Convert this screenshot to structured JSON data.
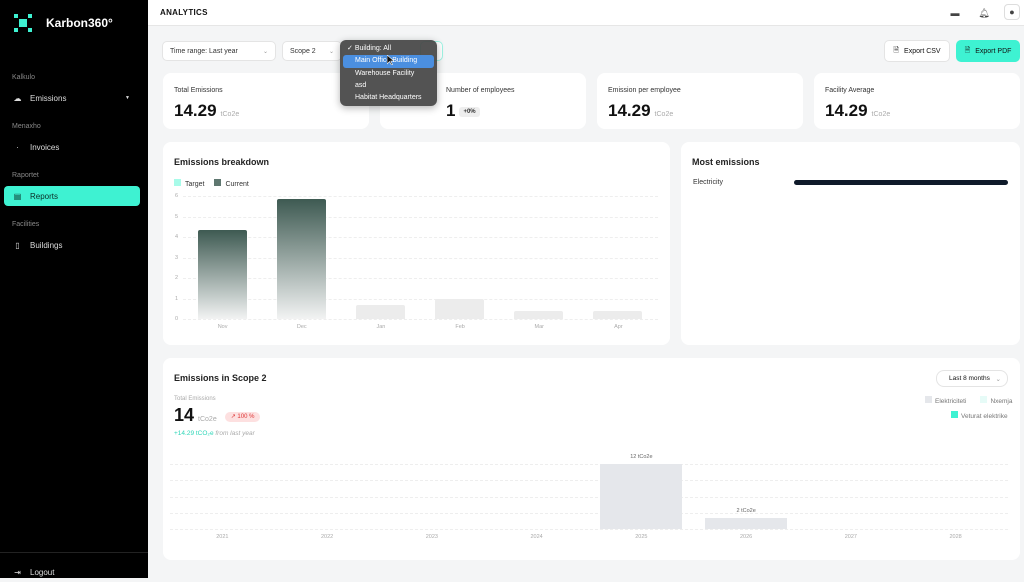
{
  "app": {
    "name": "Karbon360°"
  },
  "sidebar": {
    "sections": [
      {
        "label": "Kalkulo",
        "items": [
          {
            "label": "Emissions",
            "icon": "cloud-icon"
          }
        ]
      },
      {
        "label": "Menaxho",
        "items": [
          {
            "label": "Invoices",
            "icon": "dot-icon"
          }
        ]
      },
      {
        "label": "Raportet",
        "items": [
          {
            "label": "Reports",
            "icon": "report-icon",
            "active": true
          }
        ]
      },
      {
        "label": "Facilities",
        "items": [
          {
            "label": "Buildings",
            "icon": "building-icon"
          }
        ]
      }
    ],
    "logout": "Logout"
  },
  "header": {
    "title": "ANALYTICS"
  },
  "filters": {
    "time_range": "Time range: Last year",
    "scope": "Scope 2",
    "building_options": [
      "Building: All",
      "Main Office Building",
      "Warehouse Facility",
      "asd",
      "Habitat Headquarters"
    ],
    "check": "✓"
  },
  "actions": {
    "export_csv": "Export CSV",
    "export_pdf": "Export PDF"
  },
  "kpis": [
    {
      "label": "Total Emissions",
      "value": "14.29",
      "unit": "tCo2e"
    },
    {
      "label": "Number of employees",
      "value": "1",
      "badge": "+0%"
    },
    {
      "label": "Emission per employee",
      "value": "14.29",
      "unit": "tCo2e"
    },
    {
      "label": "Facility Average",
      "value": "14.29",
      "unit": "tCo2e"
    }
  ],
  "most_emissions": {
    "title": "Most emissions",
    "items": [
      {
        "label": "Electricity",
        "share": 1.0
      }
    ]
  },
  "scope2": {
    "title": "Emissions in Scope 2",
    "range": "Last 8 months",
    "total_label": "Total Emissions",
    "total": "14",
    "unit": "tCo2e",
    "change": "↗ 100 %",
    "delta": "+14.29 tCO₂e",
    "delta_suffix": "from last year",
    "legend": [
      "Elektriciteti",
      "Nxemja",
      "Veturat elektrike"
    ]
  },
  "chart_data": [
    {
      "type": "bar",
      "title": "Emissions breakdown",
      "legend": [
        "Target",
        "Current"
      ],
      "categories": [
        "Nov",
        "Dec",
        "Jan",
        "Feb",
        "Mar",
        "Apr"
      ],
      "values": [
        4.35,
        5.85,
        0.7,
        1.0,
        0.4,
        0.4
      ],
      "yticks": [
        0,
        1,
        2,
        3,
        4,
        5,
        6
      ],
      "ylim": [
        0,
        6
      ]
    },
    {
      "type": "bar",
      "title": "Emissions in Scope 2",
      "categories": [
        "2021",
        "2022",
        "2023",
        "2024",
        "2025",
        "2026",
        "2027",
        "2028"
      ],
      "values": [
        0,
        0,
        0,
        0,
        12,
        2,
        0,
        0
      ],
      "labels": {
        "2025": "12 tCo2e",
        "2026": "2 tCo2e"
      },
      "ylim": [
        0,
        12
      ]
    }
  ],
  "colors": {
    "accent": "#3ef2d2",
    "dark": "#3e5a52"
  }
}
